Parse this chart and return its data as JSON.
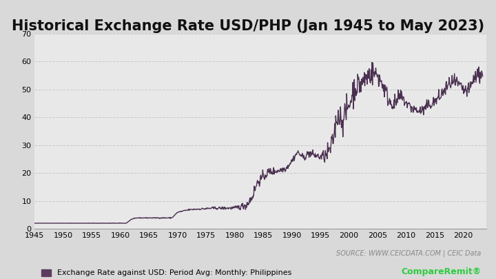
{
  "title": "Historical Exchange Rate USD/PHP (Jan 1945 to May 2023)",
  "title_fontsize": 15,
  "title_fontweight": "bold",
  "xlabel": "",
  "ylabel": "",
  "background_color": "#d9d9d9",
  "plot_bg_color": "#e8e8e8",
  "line_color": "#4a3050",
  "line_width": 1.0,
  "ylim": [
    0,
    70
  ],
  "xlim": [
    1945,
    2024
  ],
  "yticks": [
    0,
    10,
    20,
    30,
    40,
    50,
    60,
    70
  ],
  "xticks": [
    1945,
    1950,
    1955,
    1960,
    1965,
    1970,
    1975,
    1980,
    1985,
    1990,
    1995,
    2000,
    2005,
    2010,
    2015,
    2020
  ],
  "legend_label": "Exchange Rate against USD: Period Avg: Monthly: Philippines",
  "legend_color": "#5c3c5c",
  "source_text": "SOURCE: WWW.CEICDATA.COM | CEIC Data",
  "source_fontsize": 7,
  "grid_color": "#bbbbbb",
  "grid_style": "--",
  "grid_alpha": 0.7,
  "data_years": [
    1945,
    1946,
    1947,
    1948,
    1949,
    1950,
    1951,
    1952,
    1953,
    1954,
    1955,
    1956,
    1957,
    1958,
    1959,
    1960,
    1961,
    1962,
    1963,
    1964,
    1965,
    1966,
    1967,
    1968,
    1969,
    1970,
    1971,
    1972,
    1973,
    1974,
    1975,
    1976,
    1977,
    1978,
    1979,
    1980,
    1981,
    1982,
    1983,
    1984,
    1985,
    1986,
    1987,
    1988,
    1989,
    1990,
    1991,
    1992,
    1993,
    1994,
    1995,
    1996,
    1997,
    1998,
    1999,
    2000,
    2001,
    2002,
    2003,
    2004,
    2005,
    2006,
    2007,
    2008,
    2009,
    2010,
    2011,
    2012,
    2013,
    2014,
    2015,
    2016,
    2017,
    2018,
    2019,
    2020,
    2021,
    2022,
    2023
  ],
  "data_values": [
    2.0,
    2.0,
    2.0,
    2.0,
    2.0,
    2.0,
    2.0,
    2.0,
    2.0,
    2.0,
    2.0,
    2.0,
    2.0,
    2.0,
    2.0,
    2.0,
    2.0,
    3.5,
    3.9,
    3.9,
    3.9,
    3.9,
    3.9,
    3.9,
    3.9,
    5.9,
    6.4,
    6.8,
    7.0,
    7.1,
    7.2,
    7.4,
    7.4,
    7.4,
    7.4,
    7.5,
    7.9,
    8.5,
    11.1,
    16.7,
    18.6,
    20.4,
    20.6,
    21.1,
    21.7,
    24.3,
    27.5,
    25.5,
    27.1,
    26.4,
    25.7,
    26.2,
    29.5,
    40.9,
    39.1,
    44.2,
    50.9,
    51.6,
    54.2,
    56.0,
    55.1,
    51.3,
    46.1,
    44.5,
    47.7,
    45.1,
    43.3,
    42.2,
    42.4,
    44.4,
    45.5,
    47.5,
    50.4,
    52.7,
    51.8,
    49.6,
    49.2,
    54.5,
    55.5
  ]
}
